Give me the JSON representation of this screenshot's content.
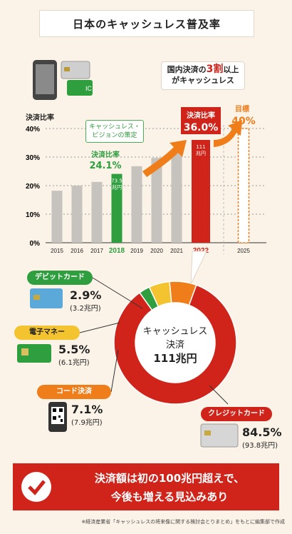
{
  "title": "日本のキャッシュレス普及率",
  "callout": {
    "line1_a": "国内決済の",
    "line1_b": "3割",
    "line1_c": "以上",
    "line2": "がキャッシュレス"
  },
  "note_green": {
    "line1": "キャッシュレス・",
    "line2": "ビジョンの策定"
  },
  "chart_data": [
    {
      "type": "bar",
      "ylabel": "決済比率",
      "ylim": [
        0,
        40
      ],
      "yticks": [
        "0%",
        "10%",
        "20%",
        "30%",
        "40%"
      ],
      "categories": [
        "2015",
        "2016",
        "2017",
        "2018",
        "2019",
        "2020",
        "2021",
        "2022",
        "2025"
      ],
      "values": [
        18.2,
        20.0,
        21.3,
        24.1,
        26.8,
        29.7,
        32.5,
        36.0,
        40.0
      ],
      "highlight": {
        "2018": {
          "label_title": "決済比率",
          "label_value": "24.1%",
          "bar_text_1": "73.5",
          "bar_text_2": "兆円",
          "color": "#2e9e3e"
        },
        "2022": {
          "label_title": "決済比率",
          "label_value": "36.0%",
          "bar_text_1": "111",
          "bar_text_2": "兆円",
          "color": "#d0241b"
        },
        "2025": {
          "label_title": "目標",
          "label_value": "40%",
          "color": "#ef7d1a"
        }
      },
      "colors": {
        "default": "#c6c2bd",
        "target": "#ef7d1a"
      }
    },
    {
      "type": "pie",
      "center_label_1": "キャッシュレス",
      "center_label_2": "決済",
      "center_label_3": "111兆円",
      "slices": [
        {
          "name": "デビットカード",
          "percent": 2.9,
          "amount": "(3.2兆円)",
          "color": "#2e9e3e",
          "label": "2.9%"
        },
        {
          "name": "電子マネー",
          "percent": 5.5,
          "amount": "(6.1兆円)",
          "color": "#f4c430",
          "label": "5.5%"
        },
        {
          "name": "コード決済",
          "percent": 7.1,
          "amount": "(7.9兆円)",
          "color": "#ef7d1a",
          "label": "7.1%"
        },
        {
          "name": "クレジットカード",
          "percent": 84.5,
          "amount": "(93.8兆円)",
          "color": "#d0241b",
          "label": "84.5%"
        }
      ]
    }
  ],
  "banner": {
    "line1": "決済額は初の100兆円超えで、",
    "line2": "今後も増える見込みあり"
  },
  "footnote": "※経済産業省「キャッシュレスの将来像に関する検討会とりまとめ」をもとに編集部で作成"
}
